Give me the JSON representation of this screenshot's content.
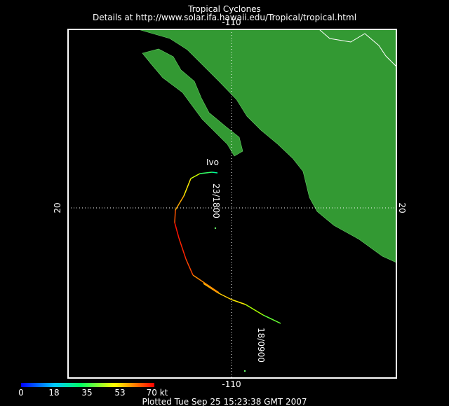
{
  "header": {
    "title": "Tropical Cyclones",
    "subtitle": "Details at http://www.solar.ifa.hawaii.edu/Tropical/tropical.html"
  },
  "map": {
    "lon_top": "-110",
    "lon_bottom": "-110",
    "lat_left": "20",
    "lat_right": "20"
  },
  "storm": {
    "name": "Ivo",
    "start_label": "18/0900",
    "end_label": "23/1800"
  },
  "legend": {
    "labels": [
      "0",
      "18",
      "35",
      "53",
      "70 kt"
    ]
  },
  "footer": {
    "text": "Plotted Tue Sep 25 15:23:38 GMT 2007"
  }
}
